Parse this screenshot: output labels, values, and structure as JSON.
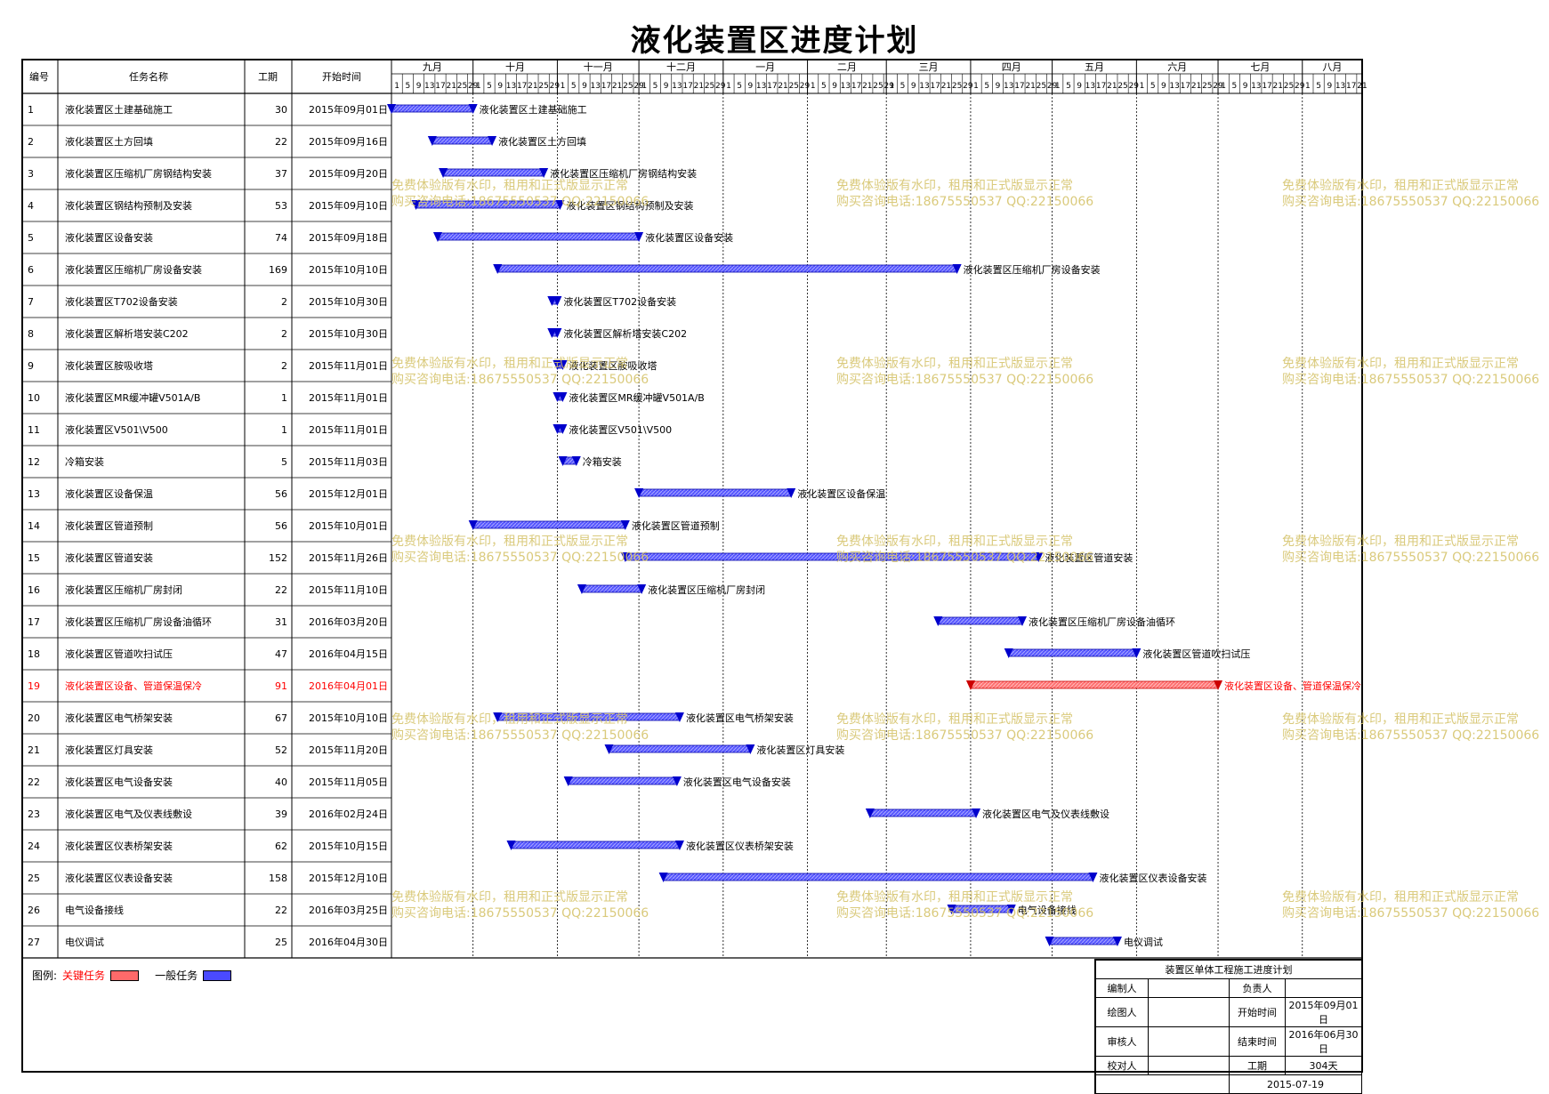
{
  "title": "液化装置区进度计划",
  "header": {
    "col_id": "编号",
    "col_name": "任务名称",
    "col_duration": "工期",
    "col_start": "开始时间"
  },
  "timeline": {
    "months": [
      "九月",
      "十月",
      "十一月",
      "十二月",
      "一月",
      "二月",
      "三月",
      "四月",
      "五月",
      "六月",
      "七月",
      "八月"
    ],
    "month_days": [
      30,
      31,
      30,
      31,
      31,
      29,
      31,
      30,
      31,
      30,
      31,
      22
    ],
    "day_ticks": [
      "1",
      "5",
      "9",
      "13",
      "17",
      "21",
      "25",
      "29"
    ]
  },
  "chart_data": {
    "type": "gantt",
    "title": "液化装置区进度计划",
    "time_axis_start": "2015-09-01",
    "time_axis_end": "2016-08-22",
    "tasks": [
      {
        "id": "1",
        "name": "液化装置区土建基础施工",
        "duration": "30",
        "start": "2015年09月01日",
        "start_date": "2015-09-01",
        "days": 30,
        "critical": false
      },
      {
        "id": "2",
        "name": "液化装置区土方回填",
        "duration": "22",
        "start": "2015年09月16日",
        "start_date": "2015-09-16",
        "days": 22,
        "critical": false
      },
      {
        "id": "3",
        "name": "液化装置区压缩机厂房钢结构安装",
        "duration": "37",
        "start": "2015年09月20日",
        "start_date": "2015-09-20",
        "days": 37,
        "critical": false
      },
      {
        "id": "4",
        "name": "液化装置区钢结构预制及安装",
        "duration": "53",
        "start": "2015年09月10日",
        "start_date": "2015-09-10",
        "days": 53,
        "critical": false
      },
      {
        "id": "5",
        "name": "液化装置区设备安装",
        "duration": "74",
        "start": "2015年09月18日",
        "start_date": "2015-09-18",
        "days": 74,
        "critical": false
      },
      {
        "id": "6",
        "name": "液化装置区压缩机厂房设备安装",
        "duration": "169",
        "start": "2015年10月10日",
        "start_date": "2015-10-10",
        "days": 169,
        "critical": false
      },
      {
        "id": "7",
        "name": "液化装置区T702设备安装",
        "duration": "2",
        "start": "2015年10月30日",
        "start_date": "2015-10-30",
        "days": 2,
        "critical": false
      },
      {
        "id": "8",
        "name": "液化装置区解析塔安装C202",
        "duration": "2",
        "start": "2015年10月30日",
        "start_date": "2015-10-30",
        "days": 2,
        "critical": false
      },
      {
        "id": "9",
        "name": "液化装置区胺吸收塔",
        "duration": "2",
        "start": "2015年11月01日",
        "start_date": "2015-11-01",
        "days": 2,
        "critical": false
      },
      {
        "id": "10",
        "name": "液化装置区MR缓冲罐V501A/B",
        "duration": "1",
        "start": "2015年11月01日",
        "start_date": "2015-11-01",
        "days": 1,
        "critical": false
      },
      {
        "id": "11",
        "name": "液化装置区V501\\V500",
        "duration": "1",
        "start": "2015年11月01日",
        "start_date": "2015-11-01",
        "days": 1,
        "critical": false
      },
      {
        "id": "12",
        "name": "冷箱安装",
        "duration": "5",
        "start": "2015年11月03日",
        "start_date": "2015-11-03",
        "days": 5,
        "critical": false
      },
      {
        "id": "13",
        "name": "液化装置区设备保温",
        "duration": "56",
        "start": "2015年12月01日",
        "start_date": "2015-12-01",
        "days": 56,
        "critical": false
      },
      {
        "id": "14",
        "name": "液化装置区管道预制",
        "duration": "56",
        "start": "2015年10月01日",
        "start_date": "2015-10-01",
        "days": 56,
        "critical": false
      },
      {
        "id": "15",
        "name": "液化装置区管道安装",
        "duration": "152",
        "start": "2015年11月26日",
        "start_date": "2015-11-26",
        "days": 152,
        "critical": false
      },
      {
        "id": "16",
        "name": "液化装置区压缩机厂房封闭",
        "duration": "22",
        "start": "2015年11月10日",
        "start_date": "2015-11-10",
        "days": 22,
        "critical": false
      },
      {
        "id": "17",
        "name": "液化装置区压缩机厂房设备油循环",
        "duration": "31",
        "start": "2016年03月20日",
        "start_date": "2016-03-20",
        "days": 31,
        "critical": false
      },
      {
        "id": "18",
        "name": "液化装置区管道吹扫试压",
        "duration": "47",
        "start": "2016年04月15日",
        "start_date": "2016-04-15",
        "days": 47,
        "critical": false
      },
      {
        "id": "19",
        "name": "液化装置区设备、管道保温保冷",
        "duration": "91",
        "start": "2016年04月01日",
        "start_date": "2016-04-01",
        "days": 91,
        "critical": true
      },
      {
        "id": "20",
        "name": "液化装置区电气桥架安装",
        "duration": "67",
        "start": "2015年10月10日",
        "start_date": "2015-10-10",
        "days": 67,
        "critical": false
      },
      {
        "id": "21",
        "name": "液化装置区灯具安装",
        "duration": "52",
        "start": "2015年11月20日",
        "start_date": "2015-11-20",
        "days": 52,
        "critical": false
      },
      {
        "id": "22",
        "name": "液化装置区电气设备安装",
        "duration": "40",
        "start": "2015年11月05日",
        "start_date": "2015-11-05",
        "days": 40,
        "critical": false
      },
      {
        "id": "23",
        "name": "液化装置区电气及仪表线敷设",
        "duration": "39",
        "start": "2016年02月24日",
        "start_date": "2016-02-24",
        "days": 39,
        "critical": false
      },
      {
        "id": "24",
        "name": "液化装置区仪表桥架安装",
        "duration": "62",
        "start": "2015年10月15日",
        "start_date": "2015-10-15",
        "days": 62,
        "critical": false
      },
      {
        "id": "25",
        "name": "液化装置区仪表设备安装",
        "duration": "158",
        "start": "2015年12月10日",
        "start_date": "2015-12-10",
        "days": 158,
        "critical": false
      },
      {
        "id": "26",
        "name": "电气设备接线",
        "duration": "22",
        "start": "2016年03月25日",
        "start_date": "2016-03-25",
        "days": 22,
        "critical": false
      },
      {
        "id": "27",
        "name": "电仪调试",
        "duration": "25",
        "start": "2016年04月30日",
        "start_date": "2016-04-30",
        "days": 25,
        "critical": false
      }
    ]
  },
  "colors": {
    "general_task": "#4a4aff",
    "critical_task": "#ff6a6a",
    "critical_text": "#ff0000"
  },
  "watermark": {
    "line1": "免费体验版有水印，租用和正式版显示正常",
    "line2": "购买咨询电话:18675550537 QQ:22150066"
  },
  "legend": {
    "label": "图例:",
    "critical": "关键任务",
    "general": "一般任务"
  },
  "titleblock": {
    "heading": "装置区单体工程施工进度计划",
    "r1_label": "编制人",
    "r1_right_label": "负责人",
    "r1_right_value": "",
    "r2_label": "绘图人",
    "r2_right_label": "开始时间",
    "r2_right_value": "2015年09月01日",
    "r3_label": "审核人",
    "r3_right_label": "结束时间",
    "r3_right_value": "2016年06月30日",
    "r4_label": "校对人",
    "r4_right_label": "工期",
    "r4_right_value": "304天",
    "date": "2015-07-19"
  }
}
